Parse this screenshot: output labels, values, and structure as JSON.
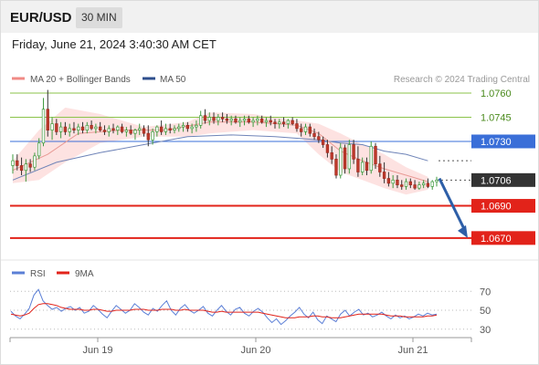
{
  "header": {
    "symbol": "EUR/USD",
    "timeframe": "30 MIN",
    "datetime": "Friday, June 21, 2024 3:40:30 AM CET"
  },
  "legend": [
    {
      "label": "MA 20 + Bollinger Bands",
      "color": "#f08a85"
    },
    {
      "label": "MA 50",
      "color": "#2e4e8c"
    }
  ],
  "watermark": "Research © 2024 Trading Central",
  "rsi_legend": [
    {
      "label": "RSI",
      "color": "#5b7fd6"
    },
    {
      "label": "9MA",
      "color": "#e2231a"
    }
  ],
  "chart_data": [
    {
      "type": "candlestick",
      "y_range": [
        1.0658,
        1.0764
      ],
      "x_ticks": [
        "Jun 19",
        "Jun 20",
        "Jun 21"
      ],
      "price_levels": [
        {
          "value": 1.076,
          "label": "1.0760",
          "kind": "resistance",
          "color": "#8bc34a"
        },
        {
          "value": 1.0745,
          "label": "1.0745",
          "kind": "resistance",
          "color": "#8bc34a"
        },
        {
          "value": 1.073,
          "label": "1.0730",
          "kind": "pivot",
          "color": "#3a6fd8"
        },
        {
          "value": 1.0706,
          "label": "1.0706",
          "kind": "last_price",
          "color": "#333333"
        },
        {
          "value": 1.069,
          "label": "1.0690",
          "kind": "target",
          "color": "#e2231a"
        },
        {
          "value": 1.067,
          "label": "1.0670",
          "kind": "target",
          "color": "#e2231a"
        }
      ],
      "ma50_last_value": 1.0718,
      "forecast_arrow": {
        "from": 1.0707,
        "to": 1.067,
        "direction": "down"
      },
      "candles": [
        [
          1.0715,
          1.0722,
          1.071,
          1.0718
        ],
        [
          1.0718,
          1.0722,
          1.0712,
          1.0715
        ],
        [
          1.0715,
          1.072,
          1.0709,
          1.0712
        ],
        [
          1.0712,
          1.0719,
          1.0705,
          1.0716
        ],
        [
          1.0716,
          1.0719,
          1.0711,
          1.0714
        ],
        [
          1.0714,
          1.0723,
          1.0712,
          1.0721
        ],
        [
          1.0721,
          1.0732,
          1.0719,
          1.0729
        ],
        [
          1.0729,
          1.0757,
          1.0727,
          1.075
        ],
        [
          1.075,
          1.0762,
          1.0733,
          1.0737
        ],
        [
          1.0737,
          1.0745,
          1.0731,
          1.0741
        ],
        [
          1.0741,
          1.0744,
          1.0734,
          1.0736
        ],
        [
          1.0736,
          1.0742,
          1.0732,
          1.0739
        ],
        [
          1.0739,
          1.0742,
          1.0734,
          1.0736
        ],
        [
          1.0736,
          1.0741,
          1.0733,
          1.0738
        ],
        [
          1.0738,
          1.0742,
          1.0735,
          1.0737
        ],
        [
          1.0737,
          1.0741,
          1.0734,
          1.0739
        ],
        [
          1.0739,
          1.0742,
          1.0735,
          1.0737
        ],
        [
          1.0737,
          1.0742,
          1.0735,
          1.074
        ],
        [
          1.074,
          1.0743,
          1.0737,
          1.0738
        ],
        [
          1.0738,
          1.0741,
          1.0735,
          1.0739
        ],
        [
          1.0739,
          1.0742,
          1.0736,
          1.0737
        ],
        [
          1.0737,
          1.074,
          1.0734,
          1.0736
        ],
        [
          1.0736,
          1.074,
          1.0733,
          1.0738
        ],
        [
          1.0738,
          1.0741,
          1.0735,
          1.0737
        ],
        [
          1.0737,
          1.074,
          1.0734,
          1.0739
        ],
        [
          1.0739,
          1.0741,
          1.0735,
          1.0736
        ],
        [
          1.0736,
          1.0739,
          1.0733,
          1.0737
        ],
        [
          1.0737,
          1.074,
          1.0734,
          1.0735
        ],
        [
          1.0735,
          1.0738,
          1.0731,
          1.0737
        ],
        [
          1.0737,
          1.0741,
          1.0734,
          1.0738
        ],
        [
          1.0738,
          1.074,
          1.0733,
          1.0735
        ],
        [
          1.0735,
          1.074,
          1.0727,
          1.0731
        ],
        [
          1.0731,
          1.0738,
          1.0728,
          1.0736
        ],
        [
          1.0736,
          1.074,
          1.0733,
          1.0739
        ],
        [
          1.0739,
          1.0743,
          1.0734,
          1.0736
        ],
        [
          1.0736,
          1.0741,
          1.0734,
          1.0738
        ],
        [
          1.0738,
          1.0741,
          1.0735,
          1.0737
        ],
        [
          1.0737,
          1.074,
          1.0735,
          1.0738
        ],
        [
          1.0738,
          1.0741,
          1.0736,
          1.0739
        ],
        [
          1.0739,
          1.0742,
          1.0736,
          1.074
        ],
        [
          1.074,
          1.0742,
          1.0736,
          1.0738
        ],
        [
          1.0738,
          1.0741,
          1.0735,
          1.0739
        ],
        [
          1.0739,
          1.0743,
          1.0736,
          1.074
        ],
        [
          1.074,
          1.0749,
          1.0738,
          1.0746
        ],
        [
          1.0746,
          1.075,
          1.0741,
          1.0743
        ],
        [
          1.0743,
          1.0748,
          1.074,
          1.0745
        ],
        [
          1.0745,
          1.0748,
          1.0741,
          1.0743
        ],
        [
          1.0743,
          1.0747,
          1.074,
          1.0745
        ],
        [
          1.0745,
          1.0748,
          1.0742,
          1.0744
        ],
        [
          1.0744,
          1.0747,
          1.0741,
          1.0743
        ],
        [
          1.0743,
          1.0746,
          1.074,
          1.0744
        ],
        [
          1.0744,
          1.0746,
          1.0741,
          1.0742
        ],
        [
          1.0742,
          1.0745,
          1.0739,
          1.0743
        ],
        [
          1.0743,
          1.0746,
          1.074,
          1.0744
        ],
        [
          1.0744,
          1.0746,
          1.0741,
          1.0742
        ],
        [
          1.0742,
          1.0745,
          1.0739,
          1.0743
        ],
        [
          1.0743,
          1.0746,
          1.074,
          1.0744
        ],
        [
          1.0744,
          1.0746,
          1.0741,
          1.0742
        ],
        [
          1.0742,
          1.0745,
          1.0739,
          1.0743
        ],
        [
          1.0743,
          1.0746,
          1.074,
          1.0742
        ],
        [
          1.0742,
          1.0744,
          1.0738,
          1.0741
        ],
        [
          1.0741,
          1.0744,
          1.0738,
          1.0742
        ],
        [
          1.0742,
          1.0745,
          1.0739,
          1.0741
        ],
        [
          1.0741,
          1.0744,
          1.0738,
          1.0743
        ],
        [
          1.0743,
          1.0745,
          1.074,
          1.0741
        ],
        [
          1.0741,
          1.0744,
          1.0736,
          1.0738
        ],
        [
          1.0738,
          1.0741,
          1.0733,
          1.0736
        ],
        [
          1.0736,
          1.0741,
          1.0734,
          1.0739
        ],
        [
          1.0739,
          1.0741,
          1.0733,
          1.0735
        ],
        [
          1.0735,
          1.0738,
          1.0731,
          1.0733
        ],
        [
          1.0733,
          1.0736,
          1.0729,
          1.0731
        ],
        [
          1.0731,
          1.0733,
          1.0726,
          1.0728
        ],
        [
          1.0728,
          1.0731,
          1.072,
          1.0723
        ],
        [
          1.0723,
          1.0727,
          1.0716,
          1.0719
        ],
        [
          1.0719,
          1.0722,
          1.0707,
          1.0709
        ],
        [
          1.0709,
          1.0729,
          1.0707,
          1.0726
        ],
        [
          1.0726,
          1.0728,
          1.071,
          1.0713
        ],
        [
          1.0713,
          1.0731,
          1.071,
          1.0728
        ],
        [
          1.0728,
          1.0731,
          1.0716,
          1.0719
        ],
        [
          1.0719,
          1.0727,
          1.0708,
          1.0711
        ],
        [
          1.0711,
          1.072,
          1.0709,
          1.0717
        ],
        [
          1.0717,
          1.072,
          1.0709,
          1.0712
        ],
        [
          1.0712,
          1.073,
          1.071,
          1.0727
        ],
        [
          1.0727,
          1.0729,
          1.0713,
          1.0716
        ],
        [
          1.0716,
          1.0721,
          1.0708,
          1.0711
        ],
        [
          1.0711,
          1.0717,
          1.0704,
          1.0707
        ],
        [
          1.0707,
          1.0711,
          1.0702,
          1.0704
        ],
        [
          1.0704,
          1.0709,
          1.0701,
          1.0706
        ],
        [
          1.0706,
          1.0709,
          1.0701,
          1.0703
        ],
        [
          1.0703,
          1.0706,
          1.07,
          1.0702
        ],
        [
          1.0702,
          1.0707,
          1.07,
          1.0705
        ],
        [
          1.0705,
          1.0707,
          1.0701,
          1.0703
        ],
        [
          1.0703,
          1.0706,
          1.07,
          1.0701
        ],
        [
          1.0701,
          1.0705,
          1.07,
          1.0703
        ],
        [
          1.0703,
          1.0706,
          1.0701,
          1.0704
        ],
        [
          1.0704,
          1.0707,
          1.0701,
          1.0702
        ],
        [
          1.0702,
          1.0706,
          1.07,
          1.0705
        ],
        [
          1.0705,
          1.0708,
          1.0702,
          1.0706
        ]
      ],
      "ma50": [
        [
          0,
          1.0706
        ],
        [
          10,
          1.0717
        ],
        [
          20,
          1.0723
        ],
        [
          30,
          1.0728
        ],
        [
          40,
          1.0733
        ],
        [
          50,
          1.0734
        ],
        [
          60,
          1.0733
        ],
        [
          70,
          1.0731
        ],
        [
          75,
          1.0729
        ],
        [
          80,
          1.0728
        ],
        [
          85,
          1.0724
        ],
        [
          90,
          1.0722
        ],
        [
          95,
          1.0718
        ]
      ],
      "ma20": [
        [
          0,
          1.0712
        ],
        [
          8,
          1.0722
        ],
        [
          15,
          1.0735
        ],
        [
          25,
          1.0737
        ],
        [
          35,
          1.0737
        ],
        [
          45,
          1.0742
        ],
        [
          55,
          1.0742
        ],
        [
          65,
          1.074
        ],
        [
          70,
          1.0735
        ],
        [
          75,
          1.0724
        ],
        [
          80,
          1.0718
        ],
        [
          85,
          1.0713
        ],
        [
          90,
          1.0709
        ],
        [
          95,
          1.0705
        ]
      ],
      "bollinger_upper": [
        [
          0,
          1.0718
        ],
        [
          6,
          1.0737
        ],
        [
          12,
          1.0751
        ],
        [
          20,
          1.0747
        ],
        [
          30,
          1.0739
        ],
        [
          40,
          1.0742
        ],
        [
          45,
          1.0748
        ],
        [
          55,
          1.0747
        ],
        [
          65,
          1.0743
        ],
        [
          70,
          1.0741
        ],
        [
          75,
          1.0735
        ],
        [
          80,
          1.0728
        ],
        [
          85,
          1.0722
        ],
        [
          90,
          1.0714
        ],
        [
          95,
          1.0708
        ]
      ],
      "bollinger_lower": [
        [
          0,
          1.0704
        ],
        [
          6,
          1.0706
        ],
        [
          12,
          1.0717
        ],
        [
          20,
          1.0729
        ],
        [
          30,
          1.0733
        ],
        [
          40,
          1.0733
        ],
        [
          45,
          1.0735
        ],
        [
          55,
          1.0737
        ],
        [
          65,
          1.0735
        ],
        [
          70,
          1.0722
        ],
        [
          75,
          1.0711
        ],
        [
          80,
          1.0706
        ],
        [
          85,
          1.0701
        ],
        [
          90,
          1.0697
        ],
        [
          95,
          1.07
        ]
      ]
    },
    {
      "type": "line",
      "series": [
        {
          "name": "RSI",
          "values": [
            49,
            44,
            41,
            46,
            52,
            66,
            72,
            60,
            55,
            51,
            53,
            49,
            52,
            54,
            50,
            53,
            47,
            49,
            55,
            51,
            46,
            42,
            49,
            55,
            51,
            47,
            50,
            57,
            53,
            48,
            45,
            52,
            49,
            55,
            60,
            50,
            45,
            52,
            56,
            50,
            47,
            50,
            54,
            47,
            44,
            50,
            55,
            49,
            45,
            51,
            53,
            47,
            44,
            49,
            52,
            48,
            42,
            37,
            41,
            35,
            39,
            44,
            48,
            53,
            46,
            42,
            48,
            40,
            36,
            44,
            41,
            38,
            46,
            50,
            44,
            48,
            51,
            45,
            47,
            43,
            45,
            48,
            44,
            41,
            45,
            42,
            44,
            41,
            43,
            46,
            44,
            47,
            45,
            46
          ]
        },
        {
          "name": "9MA",
          "values": [
            46,
            45,
            44,
            45,
            47,
            52,
            56,
            57,
            57,
            56,
            55,
            53,
            52,
            51,
            51,
            51,
            50,
            50,
            51,
            51,
            50,
            49,
            49,
            50,
            50,
            50,
            50,
            51,
            51,
            51,
            50,
            50,
            50,
            51,
            51,
            51,
            50,
            50,
            51,
            50,
            50,
            50,
            50,
            49,
            48,
            48,
            49,
            48,
            48,
            48,
            48,
            48,
            48,
            48,
            48,
            47,
            46,
            45,
            44,
            43,
            42,
            42,
            42,
            43,
            43,
            43,
            44,
            44,
            43,
            43,
            42,
            42,
            42,
            43,
            44,
            45,
            46,
            46,
            46,
            46,
            46,
            46,
            45,
            44,
            44,
            44,
            43,
            43,
            43,
            43,
            43,
            44,
            44,
            45
          ]
        }
      ],
      "y_ticks": [
        70,
        50,
        30
      ],
      "y_range": [
        25,
        77
      ]
    }
  ]
}
